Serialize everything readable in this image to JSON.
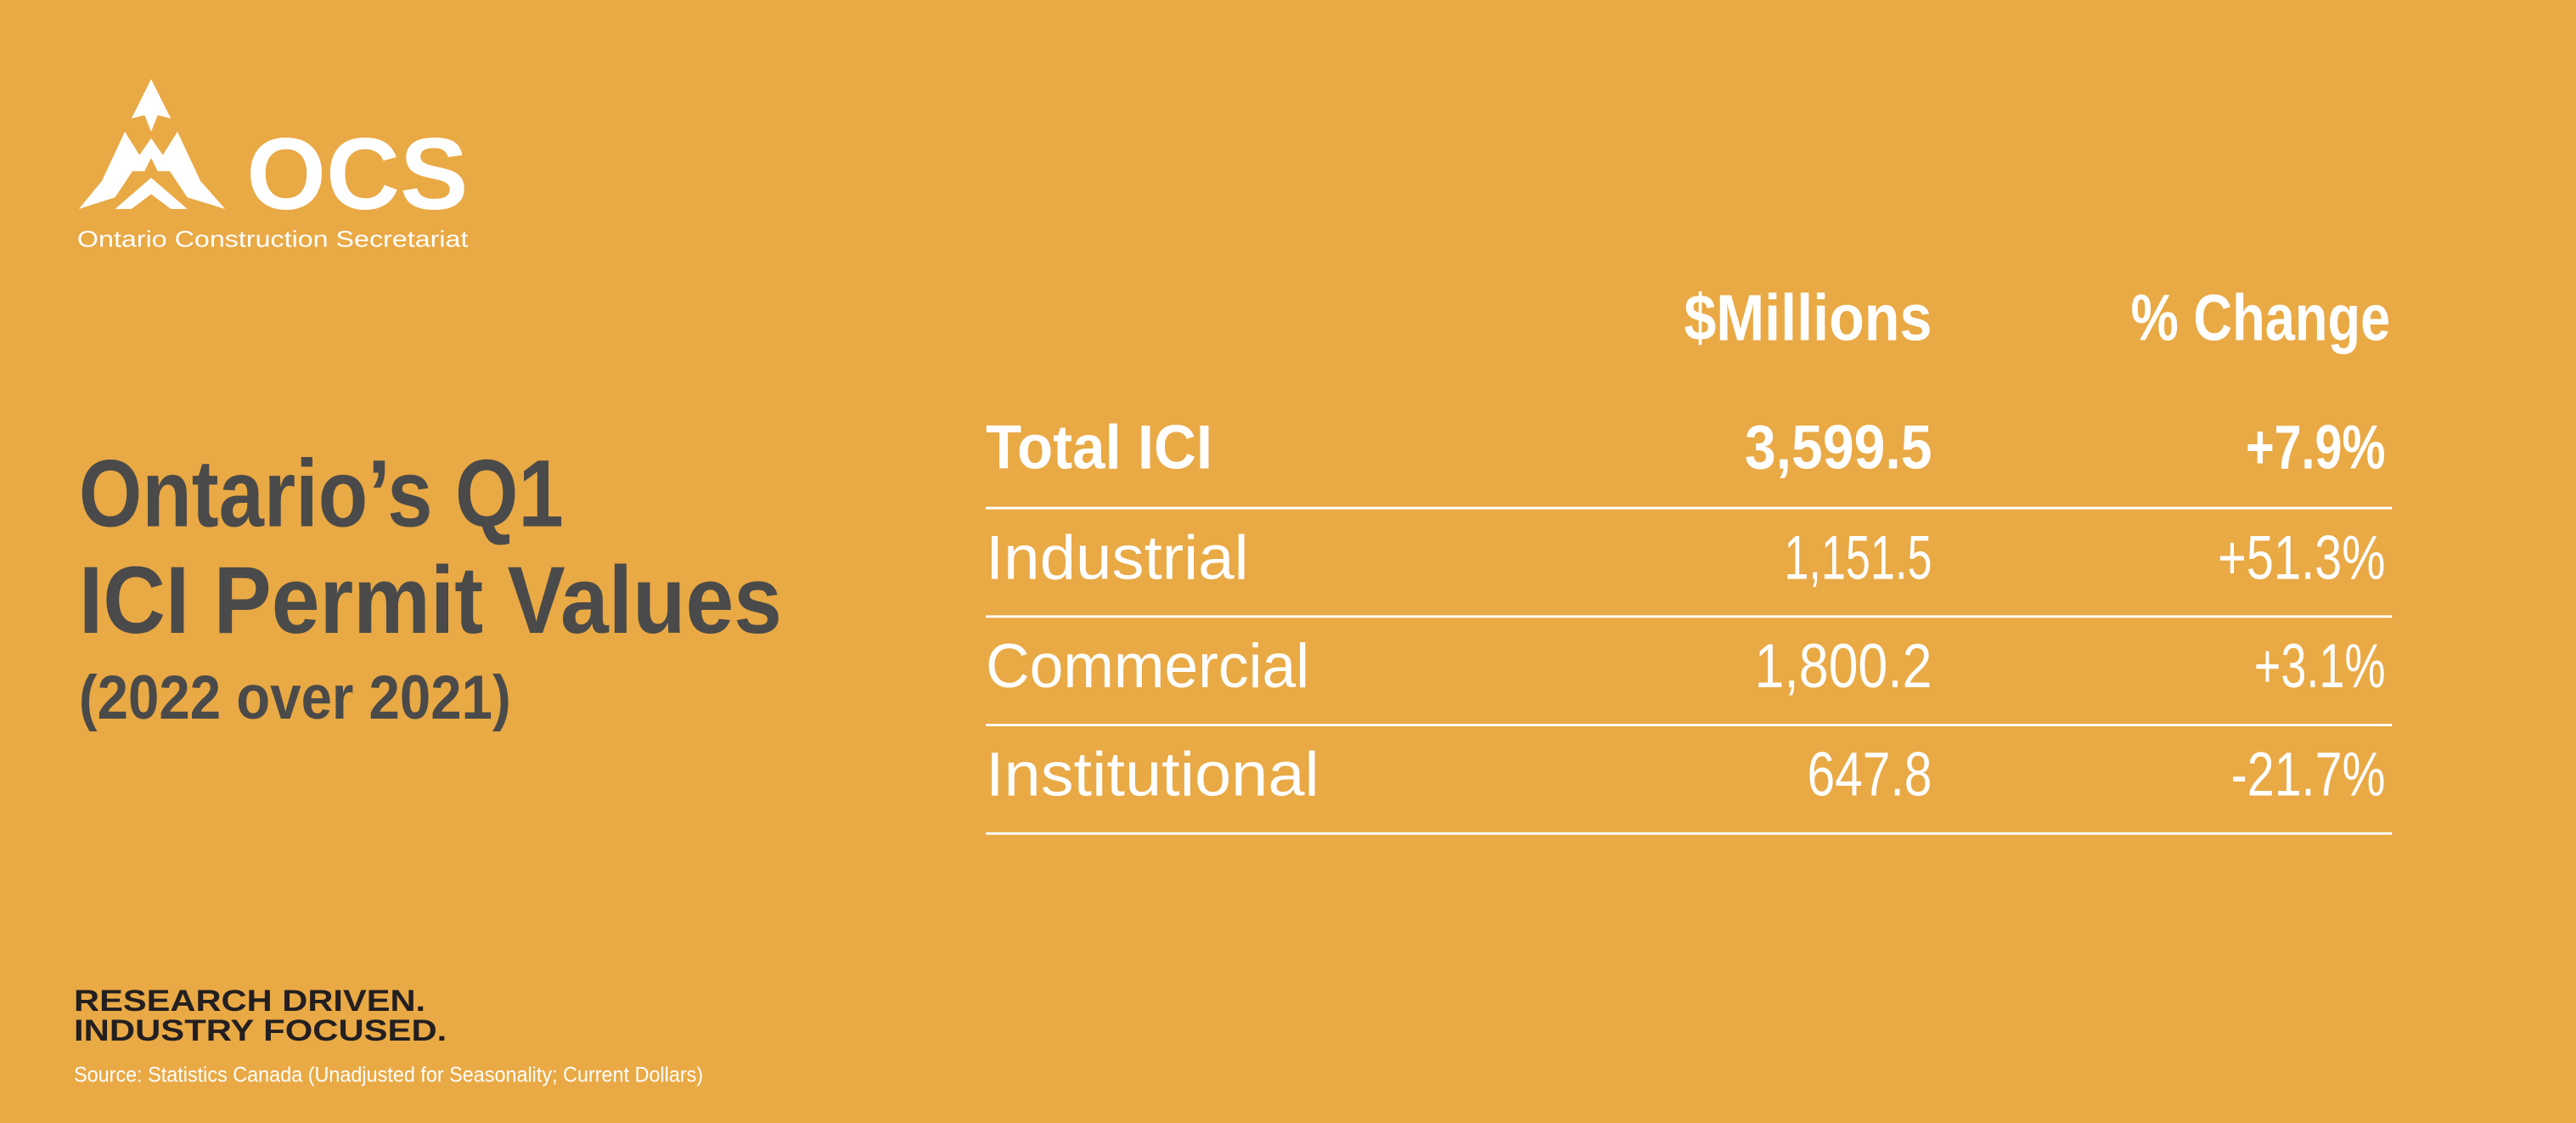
{
  "logo": {
    "mark": "OCS",
    "name": "Ontario Construction Secretariat"
  },
  "title": {
    "lines": [
      "Ontario’s Q1",
      "ICI Permit Values"
    ],
    "subtitle": "(2022 over 2021)"
  },
  "table": {
    "header": [
      "$Millions",
      "% Change"
    ],
    "rows": [
      [
        "Total ICI",
        "3,599.5",
        "+7.9%"
      ],
      [
        "Industrial",
        "1,151.5",
        "+51.3%"
      ],
      [
        "Commercial",
        "1,800.2",
        "+3.1%"
      ],
      [
        "Institutional",
        "647.8",
        "-21.7%"
      ]
    ]
  },
  "footer": {
    "tagline": [
      "RESEARCH DRIVEN.",
      "INDUSTRY FOCUSED."
    ],
    "source": "Source: Statistics Canada (Unadjusted for Seasonality; Current Dollars)"
  }
}
